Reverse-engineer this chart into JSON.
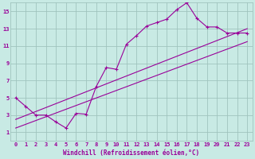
{
  "bg_color": "#c8eae4",
  "grid_color": "#a0c4be",
  "line_color": "#990099",
  "xlabel": "Windchill (Refroidissement éolien,°C)",
  "xlim": [
    -0.5,
    23.5
  ],
  "ylim": [
    0,
    16
  ],
  "xticks": [
    0,
    1,
    2,
    3,
    4,
    5,
    6,
    7,
    8,
    9,
    10,
    11,
    12,
    13,
    14,
    15,
    16,
    17,
    18,
    19,
    20,
    21,
    22,
    23
  ],
  "yticks": [
    1,
    3,
    5,
    7,
    9,
    11,
    13,
    15
  ],
  "curve1_x": [
    0,
    1,
    2,
    3,
    4,
    5,
    6,
    7,
    8,
    9,
    10,
    11,
    12,
    13,
    14,
    15,
    16,
    17,
    18,
    19,
    20,
    21,
    22,
    23
  ],
  "curve1_y": [
    5,
    4,
    3,
    3,
    2.2,
    1.5,
    3.2,
    3.1,
    6.3,
    8.5,
    8.3,
    11.2,
    12.2,
    13.3,
    13.7,
    14.1,
    15.2,
    16.0,
    14.2,
    13.2,
    13.2,
    12.5,
    12.5,
    12.5
  ],
  "line2_x": [
    0,
    23
  ],
  "line2_y": [
    2.5,
    13.0
  ],
  "line3_x": [
    0,
    23
  ],
  "line3_y": [
    1.5,
    11.5
  ],
  "tick_fontsize": 5.0,
  "xlabel_fontsize": 5.5
}
